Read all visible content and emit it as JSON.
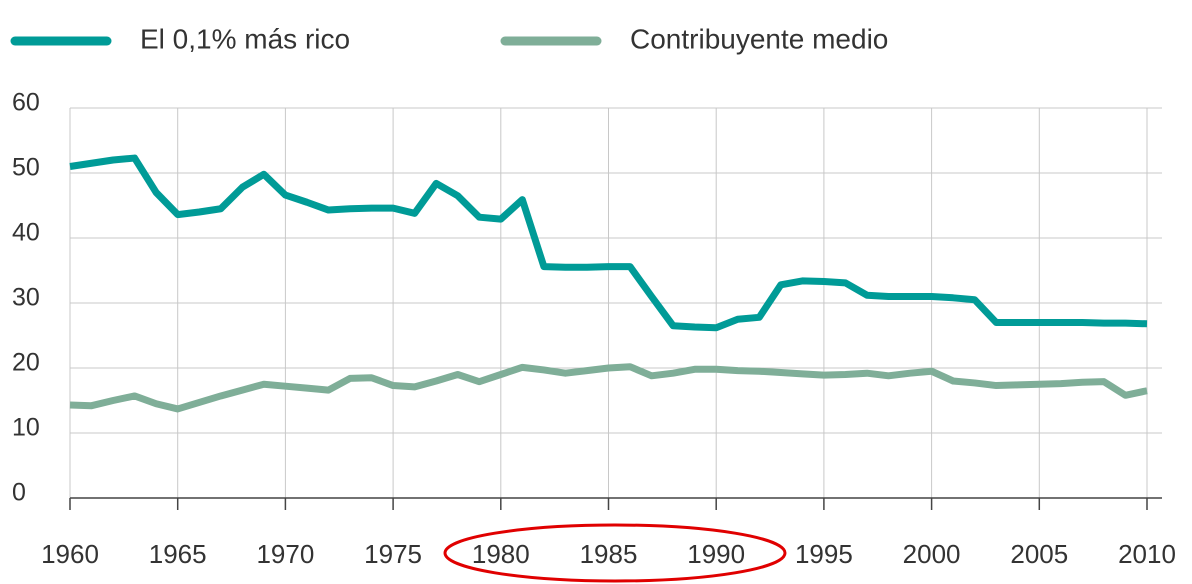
{
  "chart_data": {
    "type": "line",
    "x": [
      1960,
      1961,
      1962,
      1963,
      1964,
      1965,
      1966,
      1967,
      1968,
      1969,
      1970,
      1971,
      1972,
      1973,
      1974,
      1975,
      1976,
      1977,
      1978,
      1979,
      1980,
      1981,
      1982,
      1983,
      1984,
      1985,
      1986,
      1987,
      1988,
      1989,
      1990,
      1991,
      1992,
      1993,
      1994,
      1995,
      1996,
      1997,
      1998,
      1999,
      2000,
      2001,
      2002,
      2003,
      2004,
      2005,
      2006,
      2007,
      2008,
      2009,
      2010
    ],
    "series": [
      {
        "name": "El 0,1% más rico",
        "color": "#009b97",
        "values": [
          51,
          51.5,
          52,
          52.3,
          47,
          43.6,
          44,
          44.5,
          47.8,
          49.8,
          46.6,
          45.5,
          44.3,
          44.5,
          44.6,
          44.6,
          43.8,
          48.4,
          46.5,
          43.2,
          42.9,
          45.9,
          35.6,
          35.5,
          35.5,
          35.6,
          35.6,
          31,
          26.5,
          26.3,
          26.2,
          27.5,
          27.8,
          32.8,
          33.4,
          33.3,
          33.1,
          31.2,
          31,
          31,
          31,
          30.8,
          30.5,
          27,
          27,
          27,
          27,
          27,
          26.9,
          26.9,
          26.8
        ]
      },
      {
        "name": "Contribuyente medio",
        "color": "#7fae98",
        "values": [
          14.3,
          14.2,
          15,
          15.7,
          14.5,
          13.7,
          14.7,
          15.7,
          16.6,
          17.5,
          17.2,
          16.9,
          16.6,
          18.4,
          18.5,
          17.3,
          17.1,
          18,
          19,
          17.9,
          19,
          20.1,
          19.7,
          19.2,
          19.6,
          20,
          20.2,
          18.8,
          19.2,
          19.8,
          19.8,
          19.6,
          19.5,
          19.3,
          19.1,
          18.9,
          19,
          19.2,
          18.8,
          19.2,
          19.5,
          18,
          17.7,
          17.3,
          17.4,
          17.5,
          17.6,
          17.8,
          17.9,
          15.8,
          16.5
        ]
      }
    ],
    "xlim": [
      1960,
      2010
    ],
    "xticks": [
      1960,
      1965,
      1970,
      1975,
      1980,
      1985,
      1990,
      1995,
      2000,
      2005,
      2010
    ],
    "ylim": [
      0,
      60
    ],
    "yticks": [
      0,
      10,
      20,
      30,
      40,
      50,
      60
    ],
    "grid": true
  }
}
